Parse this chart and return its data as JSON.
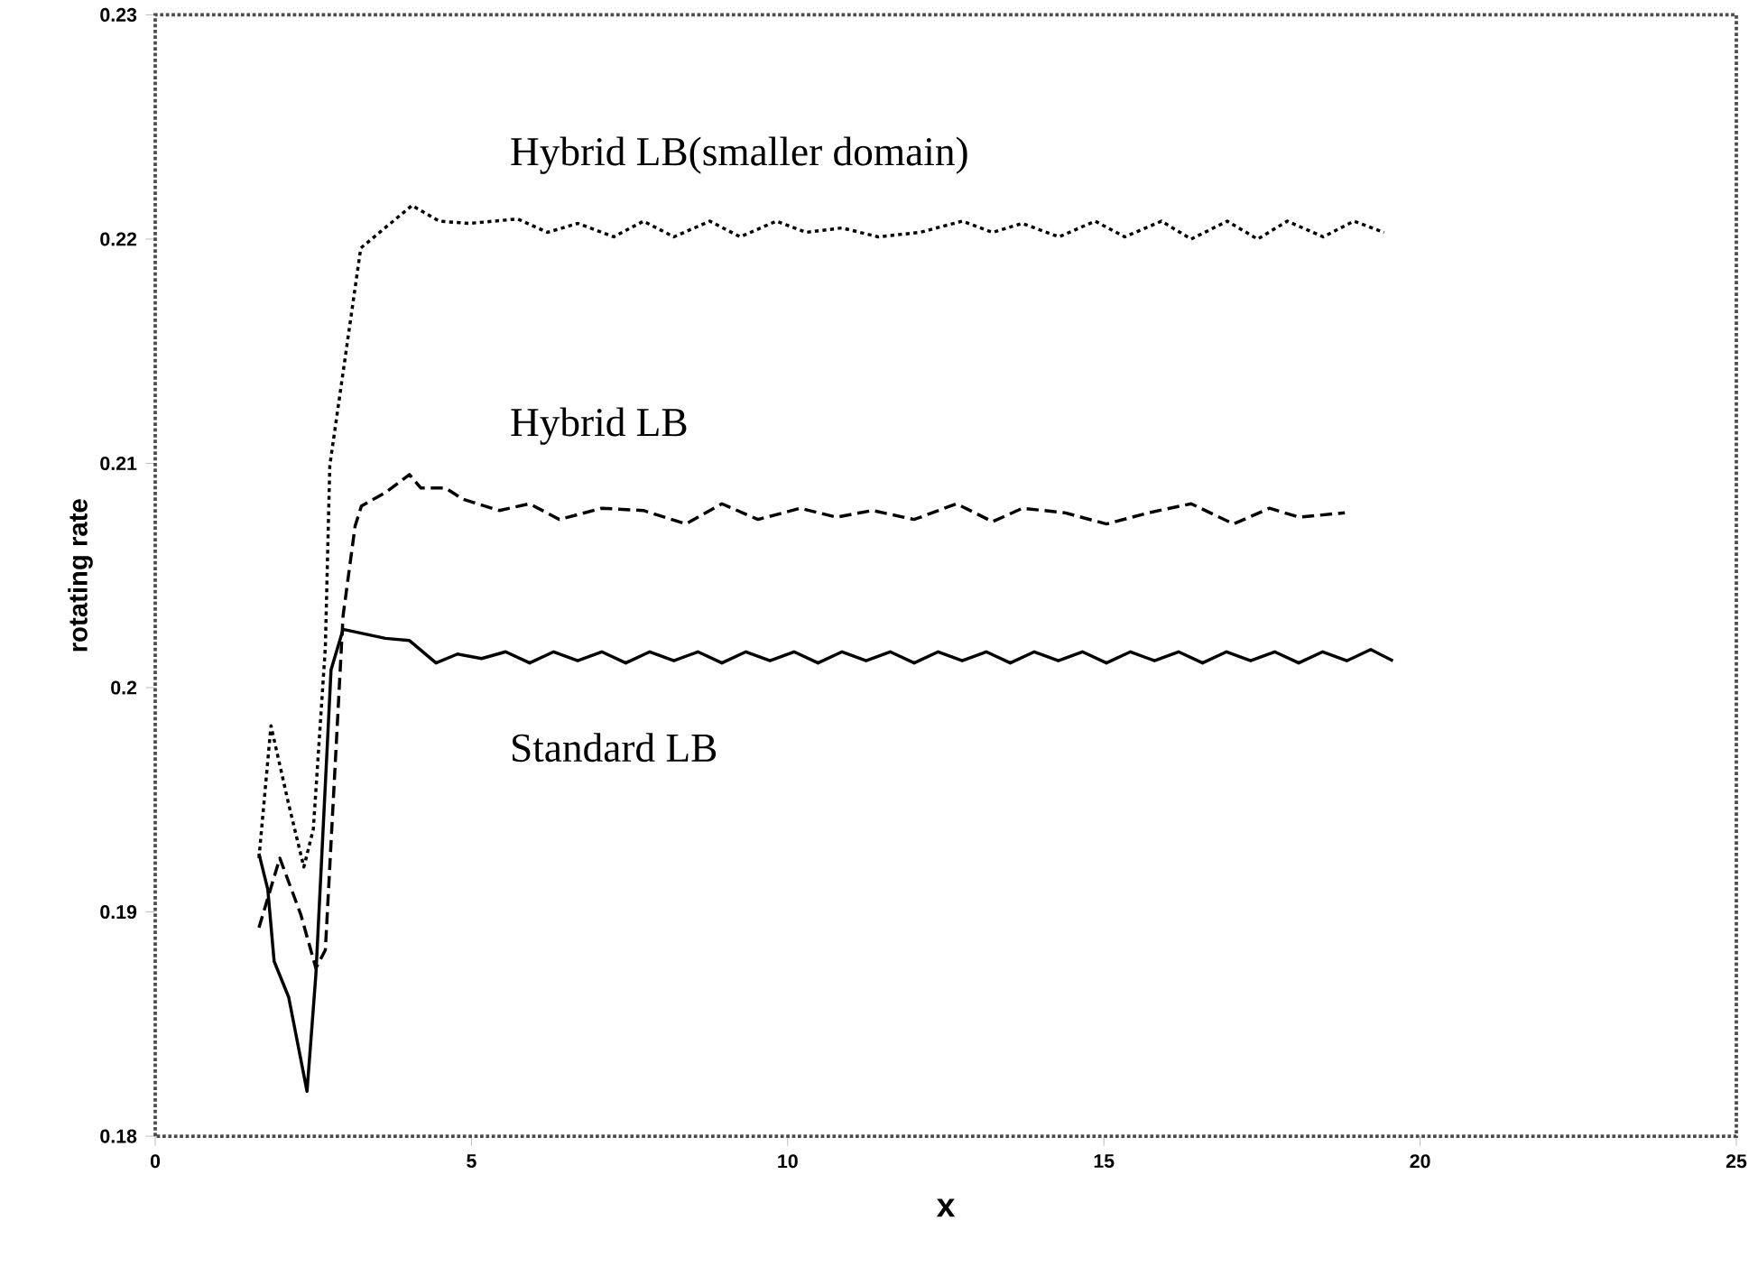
{
  "chart_data": {
    "type": "line",
    "xlabel": "x",
    "ylabel": "rotating rate",
    "xlim": [
      0,
      25
    ],
    "xticks": [
      0,
      5,
      10,
      15,
      20,
      25
    ],
    "ylim": [
      0.18,
      0.23
    ],
    "yticks": [
      0.18,
      0.19,
      0.2,
      0.21,
      0.22,
      0.23
    ],
    "grid": false,
    "legend": false,
    "marker": "none",
    "series": [
      {
        "name": "Hybrid LB(smaller domain)",
        "color": "#000000",
        "line_style": "dotted",
        "x": [
          1.64,
          1.83,
          2.11,
          2.35,
          2.5,
          2.69,
          2.76,
          3.25,
          4.06,
          4.49,
          4.97,
          5.73,
          6.2,
          6.68,
          7.25,
          7.72,
          8.2,
          8.77,
          9.25,
          9.82,
          10.29,
          10.86,
          11.43,
          12.09,
          12.76,
          13.24,
          13.71,
          14.29,
          14.86,
          15.33,
          15.91,
          16.38,
          16.95,
          17.43,
          17.9,
          18.47,
          18.95,
          19.43
        ],
        "values": [
          0.1924,
          0.1983,
          0.1948,
          0.192,
          0.1937,
          0.2018,
          0.2099,
          0.2196,
          0.2215,
          0.2208,
          0.2207,
          0.2209,
          0.2203,
          0.2207,
          0.2201,
          0.2208,
          0.2201,
          0.2208,
          0.2201,
          0.2208,
          0.2203,
          0.2205,
          0.2201,
          0.2203,
          0.2208,
          0.2203,
          0.2207,
          0.2201,
          0.2208,
          0.2201,
          0.2208,
          0.22,
          0.2208,
          0.22,
          0.2208,
          0.2201,
          0.2208,
          0.2203
        ]
      },
      {
        "name": "Hybrid LB",
        "color": "#000000",
        "line_style": "dashed",
        "x": [
          1.64,
          1.97,
          2.3,
          2.54,
          2.69,
          2.97,
          3.16,
          3.26,
          3.64,
          4.02,
          4.2,
          4.59,
          4.87,
          5.44,
          5.92,
          6.39,
          7.06,
          7.72,
          8.39,
          8.96,
          9.53,
          10.2,
          10.77,
          11.34,
          12.0,
          12.67,
          13.24,
          13.71,
          14.38,
          15.04,
          15.71,
          16.38,
          17.05,
          17.62,
          18.09,
          18.81
        ],
        "values": [
          0.1893,
          0.1924,
          0.1899,
          0.1875,
          0.1883,
          0.2032,
          0.2072,
          0.2081,
          0.2087,
          0.2095,
          0.2089,
          0.2089,
          0.2084,
          0.2079,
          0.2082,
          0.2075,
          0.208,
          0.2079,
          0.2073,
          0.2082,
          0.2075,
          0.208,
          0.2076,
          0.2079,
          0.2075,
          0.2082,
          0.2074,
          0.208,
          0.2078,
          0.2073,
          0.2078,
          0.2082,
          0.2073,
          0.208,
          0.2076,
          0.2078
        ]
      },
      {
        "name": "Standard LB",
        "color": "#000000",
        "line_style": "solid",
        "x": [
          1.64,
          1.78,
          1.88,
          2.11,
          2.4,
          2.54,
          2.78,
          2.97,
          3.64,
          4.02,
          4.44,
          4.78,
          5.16,
          5.54,
          5.92,
          6.3,
          6.68,
          7.06,
          7.44,
          7.82,
          8.2,
          8.58,
          8.96,
          9.34,
          9.72,
          10.1,
          10.48,
          10.86,
          11.24,
          11.62,
          12.0,
          12.38,
          12.76,
          13.14,
          13.52,
          13.9,
          14.28,
          14.66,
          15.04,
          15.42,
          15.8,
          16.18,
          16.56,
          16.94,
          17.32,
          17.7,
          18.08,
          18.46,
          18.84,
          19.22,
          19.57
        ],
        "values": [
          0.1926,
          0.191,
          0.1878,
          0.1862,
          0.182,
          0.1872,
          0.2008,
          0.2026,
          0.2022,
          0.2021,
          0.2011,
          0.2015,
          0.2013,
          0.2016,
          0.2011,
          0.2016,
          0.2012,
          0.2016,
          0.2011,
          0.2016,
          0.2012,
          0.2016,
          0.2011,
          0.2016,
          0.2012,
          0.2016,
          0.2011,
          0.2016,
          0.2012,
          0.2016,
          0.2011,
          0.2016,
          0.2012,
          0.2016,
          0.2011,
          0.2016,
          0.2012,
          0.2016,
          0.2011,
          0.2016,
          0.2012,
          0.2016,
          0.2011,
          0.2016,
          0.2012,
          0.2016,
          0.2011,
          0.2016,
          0.2012,
          0.2017,
          0.2012
        ]
      }
    ]
  }
}
